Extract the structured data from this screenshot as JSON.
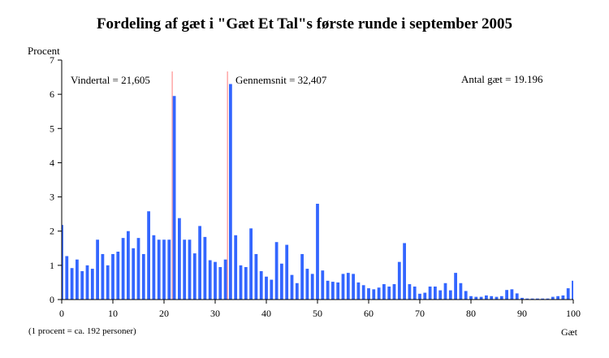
{
  "chart_data": {
    "type": "bar",
    "title": "Fordeling af gæt i \"Gæt Et Tal\"s første runde i september 2005",
    "ylabel": "Procent",
    "xlabel": "Gæt",
    "ylim": [
      0,
      7
    ],
    "xlim": [
      0,
      100
    ],
    "yticks": [
      0,
      1,
      2,
      3,
      4,
      5,
      6,
      7
    ],
    "xticks": [
      0,
      10,
      20,
      30,
      40,
      50,
      60,
      70,
      80,
      90,
      100
    ],
    "x": [
      0,
      1,
      2,
      3,
      4,
      5,
      6,
      7,
      8,
      9,
      10,
      11,
      12,
      13,
      14,
      15,
      16,
      17,
      18,
      19,
      20,
      21,
      22,
      23,
      24,
      25,
      26,
      27,
      28,
      29,
      30,
      31,
      32,
      33,
      34,
      35,
      36,
      37,
      38,
      39,
      40,
      41,
      42,
      43,
      44,
      45,
      46,
      47,
      48,
      49,
      50,
      51,
      52,
      53,
      54,
      55,
      56,
      57,
      58,
      59,
      60,
      61,
      62,
      63,
      64,
      65,
      66,
      67,
      68,
      69,
      70,
      71,
      72,
      73,
      74,
      75,
      76,
      77,
      78,
      79,
      80,
      81,
      82,
      83,
      84,
      85,
      86,
      87,
      88,
      89,
      90,
      91,
      92,
      93,
      94,
      95,
      96,
      97,
      98,
      99,
      100
    ],
    "values": [
      2.18,
      1.27,
      0.92,
      1.17,
      0.83,
      1.0,
      0.9,
      1.75,
      1.33,
      1.0,
      1.33,
      1.4,
      1.8,
      2.0,
      1.5,
      1.8,
      1.33,
      2.58,
      1.88,
      1.75,
      1.75,
      1.75,
      5.95,
      2.38,
      1.75,
      1.75,
      1.35,
      2.15,
      1.83,
      1.15,
      1.1,
      0.95,
      1.17,
      6.3,
      1.88,
      1.0,
      0.95,
      2.08,
      1.33,
      0.83,
      0.67,
      0.58,
      1.68,
      1.05,
      1.6,
      0.72,
      0.48,
      1.33,
      0.9,
      0.75,
      2.8,
      0.85,
      0.55,
      0.52,
      0.5,
      0.75,
      0.78,
      0.75,
      0.5,
      0.42,
      0.33,
      0.3,
      0.35,
      0.45,
      0.38,
      0.45,
      1.1,
      1.65,
      0.45,
      0.38,
      0.17,
      0.2,
      0.38,
      0.38,
      0.27,
      0.48,
      0.27,
      0.78,
      0.48,
      0.25,
      0.1,
      0.08,
      0.08,
      0.12,
      0.1,
      0.08,
      0.1,
      0.28,
      0.3,
      0.18,
      0.05,
      0.03,
      0.03,
      0.03,
      0.03,
      0.03,
      0.08,
      0.1,
      0.12,
      0.33,
      0.55
    ],
    "bar_color": "#3366ff",
    "marker_color": "#ff9999",
    "annotations": {
      "winner_label": "Vindertal = 21,605",
      "winner_value": 21.605,
      "mean_label": "Gennemsnit = 32,407",
      "mean_value": 32.407,
      "count_label": "Antal gæt = 19.196"
    },
    "footnote": "(1 procent = ca. 192 personer)"
  }
}
